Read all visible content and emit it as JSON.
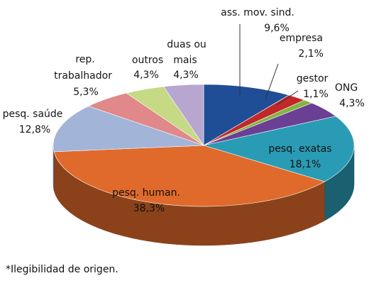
{
  "chart_data": {
    "type": "pie",
    "title": "",
    "slices": [
      {
        "label": "ass. mov. sind.",
        "value": 9.6,
        "value_label": "9,6%",
        "color": "#1f4e96"
      },
      {
        "label": "empresa",
        "value": 2.1,
        "value_label": "2,1%",
        "color": "#c0282a"
      },
      {
        "label": "gestor",
        "value": 1.1,
        "value_label": "1,1%",
        "color": "#84b441"
      },
      {
        "label": "ONG",
        "value": 4.3,
        "value_label": "4,3%",
        "color": "#6a3f94"
      },
      {
        "label": "pesq. exatas",
        "value": 18.1,
        "value_label": "18,1%",
        "color": "#2a9bb4"
      },
      {
        "label": "pesq. human.",
        "value": 38.3,
        "value_label": "38,3%",
        "color": "#e06a2b"
      },
      {
        "label": "pesq. saúde",
        "value": 12.8,
        "value_label": "12,8%",
        "color": "#a2b4d8"
      },
      {
        "label": "rep. trabalhador",
        "value": 5.3,
        "value_label": "5,3%",
        "color": "#e0888a"
      },
      {
        "label": "outros",
        "value": 4.3,
        "value_label": "4,3%",
        "color": "#c6d985"
      },
      {
        "label": "duas ou mais",
        "value": 4.3,
        "value_label": "4,3%",
        "color": "#b7a6cf"
      }
    ],
    "note": "*Ilegibilidad de origen."
  }
}
